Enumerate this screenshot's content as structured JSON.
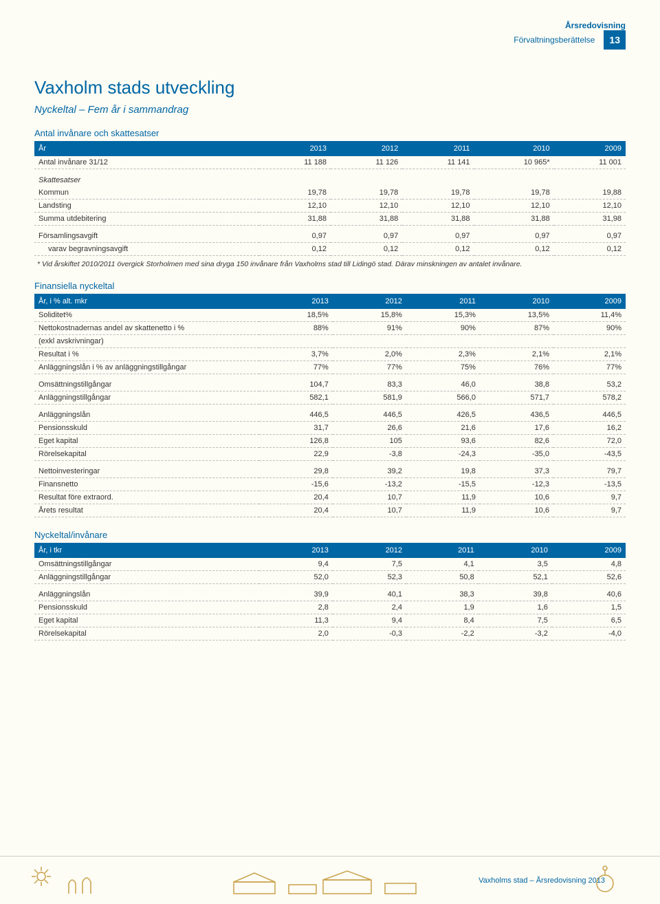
{
  "header": {
    "doc_title": "Årsredovisning",
    "doc_subtitle": "Förvaltningsberättelse",
    "page_num": "13"
  },
  "main_title": "Vaxholm stads utveckling",
  "section_subtitle": "Nyckeltal – Fem år i sammandrag",
  "table1": {
    "title": "Antal invånare och skattesatser",
    "head": [
      "År",
      "2013",
      "2012",
      "2011",
      "2010",
      "2009"
    ],
    "rows": [
      {
        "type": "data",
        "cells": [
          "Antal invånare 31/12",
          "11 188",
          "11 126",
          "11 141",
          "10 965*",
          "11 001"
        ]
      },
      {
        "type": "section",
        "label": "Skattesatser"
      },
      {
        "type": "data",
        "cells": [
          "Kommun",
          "19,78",
          "19,78",
          "19,78",
          "19,78",
          "19,88"
        ]
      },
      {
        "type": "data",
        "cells": [
          "Landsting",
          "12,10",
          "12,10",
          "12,10",
          "12,10",
          "12,10"
        ]
      },
      {
        "type": "data",
        "cells": [
          "Summa utdebitering",
          "31,88",
          "31,88",
          "31,88",
          "31,88",
          "31,98"
        ]
      },
      {
        "type": "spacer"
      },
      {
        "type": "data",
        "cells": [
          "Församlingsavgift",
          "0,97",
          "0,97",
          "0,97",
          "0,97",
          "0,97"
        ]
      },
      {
        "type": "indent",
        "cells": [
          "varav begravningsavgift",
          "0,12",
          "0,12",
          "0,12",
          "0,12",
          "0,12"
        ]
      }
    ],
    "footnote": "* Vid årskiftet 2010/2011 övergick Storholmen med sina dryga 150 invånare från Vaxholms stad till Lidingö stad. Därav minskningen av antalet invånare."
  },
  "table2": {
    "title": "Finansiella nyckeltal",
    "head": [
      "År, i % alt. mkr",
      "2013",
      "2012",
      "2011",
      "2010",
      "2009"
    ],
    "rows": [
      {
        "type": "data",
        "cells": [
          "Soliditet%",
          "18,5%",
          "15,8%",
          "15,3%",
          "13,5%",
          "11,4%"
        ]
      },
      {
        "type": "data",
        "cells": [
          "Nettokostnadernas andel av skattenetto i %",
          "88%",
          "91%",
          "90%",
          "87%",
          "90%"
        ]
      },
      {
        "type": "data",
        "cells": [
          "(exkl avskrivningar)",
          "",
          "",
          "",
          "",
          ""
        ]
      },
      {
        "type": "data",
        "cells": [
          "Resultat i %",
          "3,7%",
          "2,0%",
          "2,3%",
          "2,1%",
          "2,1%"
        ]
      },
      {
        "type": "data",
        "cells": [
          "Anläggningslån i % av anläggningstillgångar",
          "77%",
          "77%",
          "75%",
          "76%",
          "77%"
        ]
      },
      {
        "type": "spacer"
      },
      {
        "type": "data",
        "cells": [
          "Omsättningstillgångar",
          "104,7",
          "83,3",
          "46,0",
          "38,8",
          "53,2"
        ]
      },
      {
        "type": "data",
        "cells": [
          "Anläggningstillgångar",
          "582,1",
          "581,9",
          "566,0",
          "571,7",
          "578,2"
        ]
      },
      {
        "type": "spacer"
      },
      {
        "type": "data",
        "cells": [
          "Anläggningslån",
          "446,5",
          "446,5",
          "426,5",
          "436,5",
          "446,5"
        ]
      },
      {
        "type": "data",
        "cells": [
          "Pensionsskuld",
          "31,7",
          "26,6",
          "21,6",
          "17,6",
          "16,2"
        ]
      },
      {
        "type": "data",
        "cells": [
          "Eget kapital",
          "126,8",
          "105",
          "93,6",
          "82,6",
          "72,0"
        ]
      },
      {
        "type": "data",
        "cells": [
          "Rörelsekapital",
          "22,9",
          "-3,8",
          "-24,3",
          "-35,0",
          "-43,5"
        ]
      },
      {
        "type": "spacer"
      },
      {
        "type": "data",
        "cells": [
          "Nettoinvesteringar",
          "29,8",
          "39,2",
          "19,8",
          "37,3",
          "79,7"
        ]
      },
      {
        "type": "data",
        "cells": [
          "Finansnetto",
          "-15,6",
          "-13,2",
          "-15,5",
          "-12,3",
          "-13,5"
        ]
      },
      {
        "type": "data",
        "cells": [
          "Resultat före extraord.",
          "20,4",
          "10,7",
          "11,9",
          "10,6",
          "9,7"
        ]
      },
      {
        "type": "data",
        "cells": [
          "Årets resultat",
          "20,4",
          "10,7",
          "11,9",
          "10,6",
          "9,7"
        ]
      }
    ]
  },
  "table3": {
    "title": "Nyckeltal/invånare",
    "head": [
      "År, i tkr",
      "2013",
      "2012",
      "2011",
      "2010",
      "2009"
    ],
    "rows": [
      {
        "type": "data",
        "cells": [
          "Omsättningstillgångar",
          "9,4",
          "7,5",
          "4,1",
          "3,5",
          "4,8"
        ]
      },
      {
        "type": "data",
        "cells": [
          "Anläggningstillgångar",
          "52,0",
          "52,3",
          "50,8",
          "52,1",
          "52,6"
        ]
      },
      {
        "type": "spacer"
      },
      {
        "type": "data",
        "cells": [
          "Anläggningslån",
          "39,9",
          "40,1",
          "38,3",
          "39,8",
          "40,6"
        ]
      },
      {
        "type": "data",
        "cells": [
          "Pensionsskuld",
          "2,8",
          "2,4",
          "1,9",
          "1,6",
          "1,5"
        ]
      },
      {
        "type": "data",
        "cells": [
          "Eget kapital",
          "11,3",
          "9,4",
          "8,4",
          "7,5",
          "6,5"
        ]
      },
      {
        "type": "data",
        "cells": [
          "Rörelsekapital",
          "2,0",
          "-0,3",
          "-2,2",
          "-3,2",
          "-4,0"
        ]
      }
    ]
  },
  "footer": {
    "text": "Vaxholms stad – Årsredovisning 2013"
  },
  "colors": {
    "brand": "#0066a4",
    "page_bg": "#fdfcf5",
    "text": "#333333",
    "dash": "#bbbbbb"
  }
}
